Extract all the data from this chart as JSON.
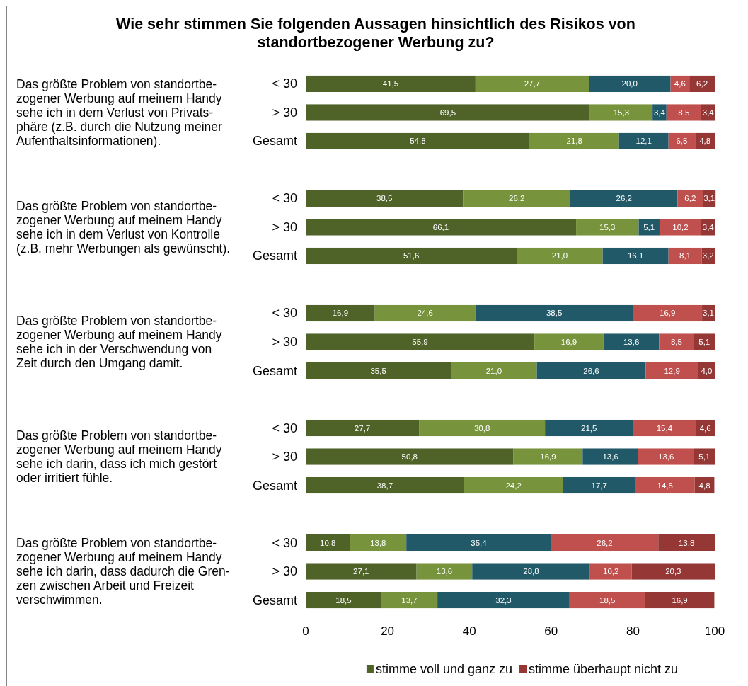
{
  "chart_data": {
    "type": "bar",
    "orientation": "horizontal",
    "stacked": true,
    "title": "Wie sehr stimmen Sie folgenden Aussagen hinsichtlich des Risikos von\nstandortbezogener Werbung zu?",
    "categories": [
      "< 30",
      "> 30",
      "Gesamt",
      null,
      "< 30",
      "> 30",
      "Gesamt",
      null,
      "< 30",
      "> 30",
      "Gesamt",
      null,
      "< 30",
      "> 30",
      "Gesamt",
      null,
      "< 30",
      "> 30",
      "Gesamt"
    ],
    "series": [
      {
        "name": "stimme voll und ganz zu",
        "color": "#4f6228",
        "values": [
          41.5,
          69.5,
          54.8,
          null,
          38.5,
          66.1,
          51.6,
          null,
          16.9,
          55.9,
          35.5,
          null,
          27.7,
          50.8,
          38.7,
          null,
          10.8,
          27.1,
          18.5
        ],
        "value_labels": [
          "41,5",
          "69,5",
          "54,8",
          null,
          "38,5",
          "66,1",
          "51,6",
          null,
          "16,9",
          "55,9",
          "35,5",
          null,
          "27,7",
          "50,8",
          "38,7",
          null,
          "10,8",
          "27,1",
          "18,5"
        ]
      },
      {
        "color": "#77933c",
        "values": [
          27.7,
          15.3,
          21.8,
          null,
          26.2,
          15.3,
          21.0,
          null,
          24.6,
          16.9,
          21.0,
          null,
          30.8,
          16.9,
          24.2,
          null,
          13.8,
          13.6,
          13.7
        ],
        "value_labels": [
          "27,7",
          "15,3",
          "21,8",
          null,
          "26,2",
          "15,3",
          "21,0",
          null,
          "24,6",
          "16,9",
          "21,0",
          null,
          "30,8",
          "16,9",
          "24,2",
          null,
          "13,8",
          "13,6",
          "13,7"
        ]
      },
      {
        "color": "#215968",
        "values": [
          20.0,
          3.4,
          12.1,
          null,
          26.2,
          5.1,
          16.1,
          null,
          38.5,
          13.6,
          26.6,
          null,
          21.5,
          13.6,
          17.7,
          null,
          35.4,
          28.8,
          32.3
        ],
        "value_labels": [
          "20,0",
          "3,4",
          "12,1",
          null,
          "26,2",
          "5,1",
          "16,1",
          null,
          "38,5",
          "13,6",
          "26,6",
          null,
          "21,5",
          "13,6",
          "17,7",
          null,
          "35,4",
          "28,8",
          "32,3"
        ]
      },
      {
        "color": "#c0504d",
        "values": [
          4.6,
          8.5,
          6.5,
          null,
          6.2,
          10.2,
          8.1,
          null,
          16.9,
          8.5,
          12.9,
          null,
          15.4,
          13.6,
          14.5,
          null,
          26.2,
          10.2,
          18.5
        ],
        "value_labels": [
          "4,6",
          "8,5",
          "6,5",
          null,
          "6,2",
          "10,2",
          "8,1",
          null,
          "16,9",
          "8,5",
          "12,9",
          null,
          "15,4",
          "13,6",
          "14,5",
          null,
          "26,2",
          "10,2",
          "18,5"
        ]
      },
      {
        "name": "stimme überhaupt nicht zu",
        "color": "#953735",
        "values": [
          6.2,
          3.4,
          4.8,
          null,
          3.1,
          3.4,
          3.2,
          null,
          3.1,
          5.1,
          4.0,
          null,
          4.6,
          5.1,
          4.8,
          null,
          13.8,
          20.3,
          16.9
        ],
        "value_labels": [
          "6,2",
          "3,4",
          "4,8",
          null,
          "3,1",
          "3,4",
          "3,2",
          null,
          "3,1",
          "5,1",
          "4,0",
          null,
          "4,6",
          "5,1",
          "4,8",
          null,
          "13,8",
          "20,3",
          "16,9"
        ]
      }
    ],
    "xlim": [
      0,
      100
    ],
    "xticks": [
      0,
      20,
      40,
      60,
      80,
      100
    ],
    "legend": "bottom",
    "annotations": [
      "Das größte Problem von standortbe-\nzogener Werbung auf meinem Handy\nsehe ich in dem Verlust von Privats-\nphäre (z.B. durch die Nutzung meiner\nAufenthaltsinformationen).",
      "Das größte Problem von standortbe-\nzogener Werbung auf meinem Handy\nsehe ich in dem Verlust von Kontrolle\n(z.B. mehr Werbungen als gewünscht).",
      "Das größte Problem von standortbe-\nzogener Werbung auf meinem Handy\nsehe ich in der Verschwendung von\nZeit durch den Umgang damit.",
      "Das größte Problem von standortbe-\nzogener Werbung auf meinem Handy\nsehe ich darin, dass ich mich gestört\noder irritiert fühle.",
      "Das größte Problem von standortbe-\nzogener Werbung auf meinem Handy\nsehe ich darin, dass dadurch die Gren-\nzen zwischen Arbeit und Freizeit\nverschwimmen."
    ]
  }
}
